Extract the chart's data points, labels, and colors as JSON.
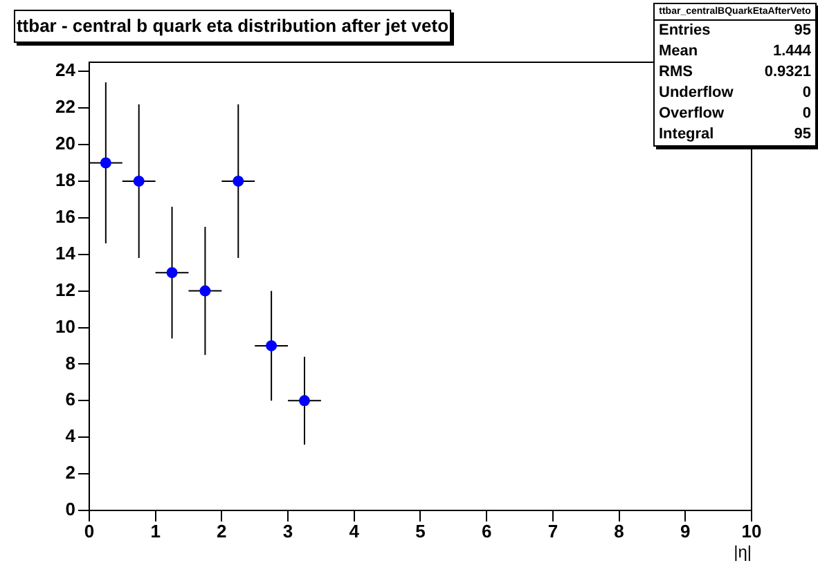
{
  "chart_data": {
    "type": "scatter",
    "title": "ttbar - central b quark eta distribution after jet veto",
    "xlabel": "|η|",
    "x": [
      0.25,
      0.75,
      1.25,
      1.75,
      2.25,
      2.75,
      3.25
    ],
    "series": [
      {
        "color": "#0000ff",
        "values": [
          19,
          18,
          13,
          12,
          18,
          9,
          6
        ],
        "errors": [
          4.4,
          4.2,
          3.6,
          3.5,
          4.2,
          3,
          2.4
        ],
        "xerrors": [
          0.25,
          0.25,
          0.25,
          0.25,
          0.25,
          0.25,
          0.25
        ]
      }
    ],
    "xlim": [
      0,
      10
    ],
    "xticks": [
      0,
      1,
      2,
      3,
      4,
      5,
      6,
      7,
      8,
      9,
      10
    ],
    "ylim": [
      0,
      24.5
    ],
    "yticks": [
      0,
      2,
      4,
      6,
      8,
      10,
      12,
      14,
      16,
      18,
      20,
      22,
      24
    ],
    "grid": false,
    "legend": false,
    "marker": "circle",
    "annotations": [
      "ttbar_centralBQuarkEtaAfterVeto",
      "Entries",
      "95",
      "Mean",
      "1.444",
      "RMS",
      "0.9321",
      "Underflow",
      "0",
      "Overflow",
      "0",
      "Integral",
      "95"
    ]
  }
}
